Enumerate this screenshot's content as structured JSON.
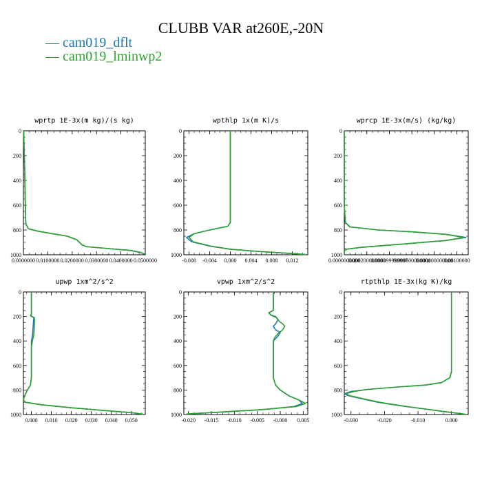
{
  "title": "CLUBB VAR at260E,-20N",
  "legend": [
    {
      "label": "cam019_dflt",
      "color": "#1f77b4"
    },
    {
      "label": "cam019_lminwp2",
      "color": "#2ca02c"
    }
  ],
  "chart_data": [
    {
      "type": "line",
      "title": "wprtp  1E-3x(m kg)/(s kg)",
      "xlim": [
        0,
        0.05
      ],
      "ylim": [
        1000,
        0
      ],
      "xticks": [
        "0.0000000",
        "0.0100000",
        "0.0200000",
        "0.0300000",
        "0.0400000",
        "0.0500000"
      ],
      "xtick_values": [
        0,
        0.01,
        0.02,
        0.03,
        0.04,
        0.05
      ],
      "yticks": [
        0,
        200,
        400,
        600,
        800,
        1000
      ],
      "series": [
        {
          "name": "cam019_dflt",
          "color": "#1f77b4",
          "points": [
            [
              0.0001,
              0
            ],
            [
              0.0005,
              300
            ],
            [
              0.0008,
              600
            ],
            [
              0.001,
              750
            ],
            [
              0.002,
              790
            ],
            [
              0.006,
              810
            ],
            [
              0.012,
              830
            ],
            [
              0.018,
              850
            ],
            [
              0.022,
              880
            ],
            [
              0.024,
              920
            ],
            [
              0.026,
              935
            ],
            [
              0.035,
              950
            ],
            [
              0.044,
              965
            ],
            [
              0.048,
              980
            ],
            [
              0.0495,
              993
            ]
          ]
        },
        {
          "name": "cam019_lminwp2",
          "color": "#2ca02c",
          "points": [
            [
              0.0001,
              0
            ],
            [
              0.0005,
              300
            ],
            [
              0.0008,
              600
            ],
            [
              0.001,
              750
            ],
            [
              0.002,
              790
            ],
            [
              0.006,
              810
            ],
            [
              0.012,
              830
            ],
            [
              0.018,
              850
            ],
            [
              0.022,
              880
            ],
            [
              0.024,
              920
            ],
            [
              0.026,
              935
            ],
            [
              0.035,
              950
            ],
            [
              0.044,
              966
            ],
            [
              0.048,
              982
            ],
            [
              0.0498,
              995
            ]
          ]
        }
      ]
    },
    {
      "type": "line",
      "title": "wpthlp  1x(m K)/s",
      "xlim": [
        -0.009,
        0.015
      ],
      "ylim": [
        1000,
        0
      ],
      "xticks": [
        "-0.008",
        "-0.004",
        "0.000",
        "0.004",
        "0.008",
        "0.012"
      ],
      "xtick_values": [
        -0.008,
        -0.004,
        0,
        0.004,
        0.008,
        0.012
      ],
      "yticks": [
        0,
        200,
        400,
        600,
        800,
        1000
      ],
      "series": [
        {
          "name": "cam019_dflt",
          "color": "#1f77b4",
          "points": [
            [
              0,
              0
            ],
            [
              0,
              400
            ],
            [
              0,
              740
            ],
            [
              -0.0005,
              770
            ],
            [
              -0.004,
              800
            ],
            [
              -0.007,
              830
            ],
            [
              -0.0085,
              860
            ],
            [
              -0.0075,
              895
            ],
            [
              -0.004,
              930
            ],
            [
              0,
              955
            ],
            [
              0.006,
              975
            ],
            [
              0.012,
              990
            ],
            [
              0.0145,
              998
            ]
          ]
        },
        {
          "name": "cam019_lminwp2",
          "color": "#2ca02c",
          "points": [
            [
              0,
              0
            ],
            [
              0,
              400
            ],
            [
              0,
              740
            ],
            [
              -0.0005,
              770
            ],
            [
              -0.004,
              800
            ],
            [
              -0.007,
              830
            ],
            [
              -0.008,
              860
            ],
            [
              -0.0072,
              895
            ],
            [
              -0.0038,
              930
            ],
            [
              0,
              955
            ],
            [
              0.006,
              975
            ],
            [
              0.012,
              990
            ],
            [
              0.0145,
              998
            ]
          ]
        }
      ]
    },
    {
      "type": "line",
      "title": "wprcp  1E-3x(m/s) (kg/kg)",
      "xlim": [
        0,
        0.0011
      ],
      "ylim": [
        1000,
        0
      ],
      "xticks": [
        "0.0000000000",
        "0.000200000000",
        "0.000399999997",
        "0.000600000001",
        "0.000800000000",
        "0.00100000"
      ],
      "xtick_values": [
        0,
        0.0002,
        0.0004,
        0.0006,
        0.0008,
        0.001
      ],
      "yticks": [
        0,
        200,
        400,
        600,
        800,
        1000
      ],
      "series": [
        {
          "name": "cam019_dflt",
          "color": "#1f77b4",
          "points": [
            [
              0,
              0
            ],
            [
              0,
              600
            ],
            [
              1e-05,
              740
            ],
            [
              5e-05,
              775
            ],
            [
              0.0003,
              800
            ],
            [
              0.0006,
              815
            ],
            [
              0.0009,
              835
            ],
            [
              0.00108,
              860
            ],
            [
              0.0009,
              885
            ],
            [
              0.0005,
              915
            ],
            [
              0.00015,
              940
            ],
            [
              2e-05,
              955
            ],
            [
              0,
              970
            ],
            [
              0,
              1000
            ]
          ]
        },
        {
          "name": "cam019_lminwp2",
          "color": "#2ca02c",
          "points": [
            [
              0,
              0
            ],
            [
              0,
              600
            ],
            [
              1e-05,
              740
            ],
            [
              5e-05,
              775
            ],
            [
              0.0003,
              800
            ],
            [
              0.0006,
              815
            ],
            [
              0.0009,
              835
            ],
            [
              0.00106,
              860
            ],
            [
              0.0009,
              885
            ],
            [
              0.0005,
              915
            ],
            [
              0.00015,
              940
            ],
            [
              2e-05,
              955
            ],
            [
              0,
              970
            ],
            [
              0,
              1000
            ]
          ]
        }
      ]
    },
    {
      "type": "line",
      "title": "upwp  1xm^2/s^2",
      "xlim": [
        -0.004,
        0.057
      ],
      "ylim": [
        1000,
        0
      ],
      "xticks": [
        "0.000",
        "0.010",
        "0.020",
        "0.030",
        "0.040",
        "0.050"
      ],
      "xtick_values": [
        0,
        0.01,
        0.02,
        0.03,
        0.04,
        0.05
      ],
      "yticks": [
        0,
        200,
        400,
        600,
        800,
        1000
      ],
      "series": [
        {
          "name": "cam019_dflt",
          "color": "#1f77b4",
          "points": [
            [
              0,
              0
            ],
            [
              0,
              180
            ],
            [
              -0.0005,
              195
            ],
            [
              0.0012,
              210
            ],
            [
              0.001,
              250
            ],
            [
              0.0008,
              300
            ],
            [
              0.0006,
              350
            ],
            [
              0,
              400
            ],
            [
              0,
              700
            ],
            [
              -0.0005,
              760
            ],
            [
              -0.002,
              800
            ],
            [
              -0.0035,
              850
            ],
            [
              -0.004,
              880
            ],
            [
              -0.003,
              900
            ],
            [
              0.005,
              920
            ],
            [
              0.02,
              945
            ],
            [
              0.035,
              965
            ],
            [
              0.05,
              985
            ],
            [
              0.056,
              998
            ]
          ]
        },
        {
          "name": "cam019_lminwp2",
          "color": "#2ca02c",
          "points": [
            [
              0,
              0
            ],
            [
              0,
              180
            ],
            [
              -0.0003,
              195
            ],
            [
              0.0015,
              210
            ],
            [
              0.0015,
              250
            ],
            [
              0.0014,
              300
            ],
            [
              0.0012,
              350
            ],
            [
              0.0005,
              400
            ],
            [
              0,
              450
            ],
            [
              0,
              700
            ],
            [
              -0.0005,
              760
            ],
            [
              -0.002,
              800
            ],
            [
              -0.0035,
              850
            ],
            [
              -0.004,
              880
            ],
            [
              -0.003,
              900
            ],
            [
              0.005,
              920
            ],
            [
              0.02,
              945
            ],
            [
              0.035,
              965
            ],
            [
              0.05,
              985
            ],
            [
              0.056,
              998
            ]
          ]
        }
      ]
    },
    {
      "type": "line",
      "title": "vpwp  1xm^2/s^2",
      "xlim": [
        -0.021,
        0.006
      ],
      "ylim": [
        1000,
        0
      ],
      "xticks": [
        "-0.020",
        "-0.015",
        "-0.010",
        "-0.005",
        "-0.000",
        "0.005"
      ],
      "xtick_values": [
        -0.02,
        -0.015,
        -0.01,
        -0.005,
        0,
        0.005
      ],
      "yticks": [
        0,
        200,
        400,
        600,
        800,
        1000
      ],
      "series": [
        {
          "name": "cam019_dflt",
          "color": "#1f77b4",
          "points": [
            [
              -0.0015,
              0
            ],
            [
              -0.0015,
              150
            ],
            [
              -0.0025,
              170
            ],
            [
              -0.002,
              190
            ],
            [
              -0.001,
              200
            ],
            [
              -0.0005,
              230
            ],
            [
              -0.001,
              260
            ],
            [
              -0.0015,
              280
            ],
            [
              -0.001,
              310
            ],
            [
              0,
              330
            ],
            [
              -0.0005,
              360
            ],
            [
              -0.0015,
              400
            ],
            [
              -0.0015,
              700
            ],
            [
              -0.001,
              760
            ],
            [
              0,
              800
            ],
            [
              0.002,
              850
            ],
            [
              0.004,
              880
            ],
            [
              0.0048,
              910
            ],
            [
              0.003,
              935
            ],
            [
              -0.004,
              960
            ],
            [
              -0.013,
              980
            ],
            [
              -0.02,
              995
            ]
          ]
        },
        {
          "name": "cam019_lminwp2",
          "color": "#2ca02c",
          "points": [
            [
              -0.0015,
              0
            ],
            [
              -0.0015,
              150
            ],
            [
              -0.0025,
              170
            ],
            [
              -0.002,
              190
            ],
            [
              -0.0008,
              210
            ],
            [
              -0.0002,
              240
            ],
            [
              0.0005,
              260
            ],
            [
              0.001,
              280
            ],
            [
              0.0005,
              310
            ],
            [
              -0.0005,
              340
            ],
            [
              -0.0012,
              370
            ],
            [
              -0.0015,
              400
            ],
            [
              -0.0015,
              700
            ],
            [
              -0.001,
              760
            ],
            [
              0,
              800
            ],
            [
              0.002,
              850
            ],
            [
              0.004,
              880
            ],
            [
              0.0055,
              910
            ],
            [
              0.0035,
              935
            ],
            [
              -0.004,
              960
            ],
            [
              -0.013,
              980
            ],
            [
              -0.0205,
              996
            ]
          ]
        }
      ]
    },
    {
      "type": "line",
      "title": "rtpthlp  1E-3x(kg K)/kg",
      "xlim": [
        -0.032,
        0.005
      ],
      "ylim": [
        1000,
        0
      ],
      "xticks": [
        "-0.030",
        "-0.020",
        "-0.010",
        "0.000"
      ],
      "xtick_values": [
        -0.03,
        -0.02,
        -0.01,
        0
      ],
      "yticks": [
        0,
        200,
        400,
        600,
        800,
        1000
      ],
      "series": [
        {
          "name": "cam019_dflt",
          "color": "#1f77b4",
          "points": [
            [
              0,
              0
            ],
            [
              0,
              650
            ],
            [
              -0.0005,
              700
            ],
            [
              -0.003,
              740
            ],
            [
              -0.008,
              760
            ],
            [
              -0.016,
              775
            ],
            [
              -0.025,
              795
            ],
            [
              -0.03,
              812
            ],
            [
              -0.032,
              830
            ],
            [
              -0.031,
              845
            ],
            [
              -0.027,
              870
            ],
            [
              -0.022,
              900
            ],
            [
              -0.015,
              930
            ],
            [
              -0.008,
              955
            ],
            [
              -0.001,
              980
            ],
            [
              0.004,
              997
            ]
          ]
        },
        {
          "name": "cam019_lminwp2",
          "color": "#2ca02c",
          "points": [
            [
              0,
              0
            ],
            [
              0,
              650
            ],
            [
              -0.0005,
              700
            ],
            [
              -0.003,
              740
            ],
            [
              -0.008,
              760
            ],
            [
              -0.016,
              775
            ],
            [
              -0.025,
              795
            ],
            [
              -0.029,
              812
            ],
            [
              -0.0315,
              830
            ],
            [
              -0.0305,
              845
            ],
            [
              -0.0265,
              870
            ],
            [
              -0.0215,
              900
            ],
            [
              -0.0145,
              930
            ],
            [
              -0.0078,
              955
            ],
            [
              -0.001,
              980
            ],
            [
              0.004,
              997
            ]
          ]
        }
      ]
    }
  ]
}
